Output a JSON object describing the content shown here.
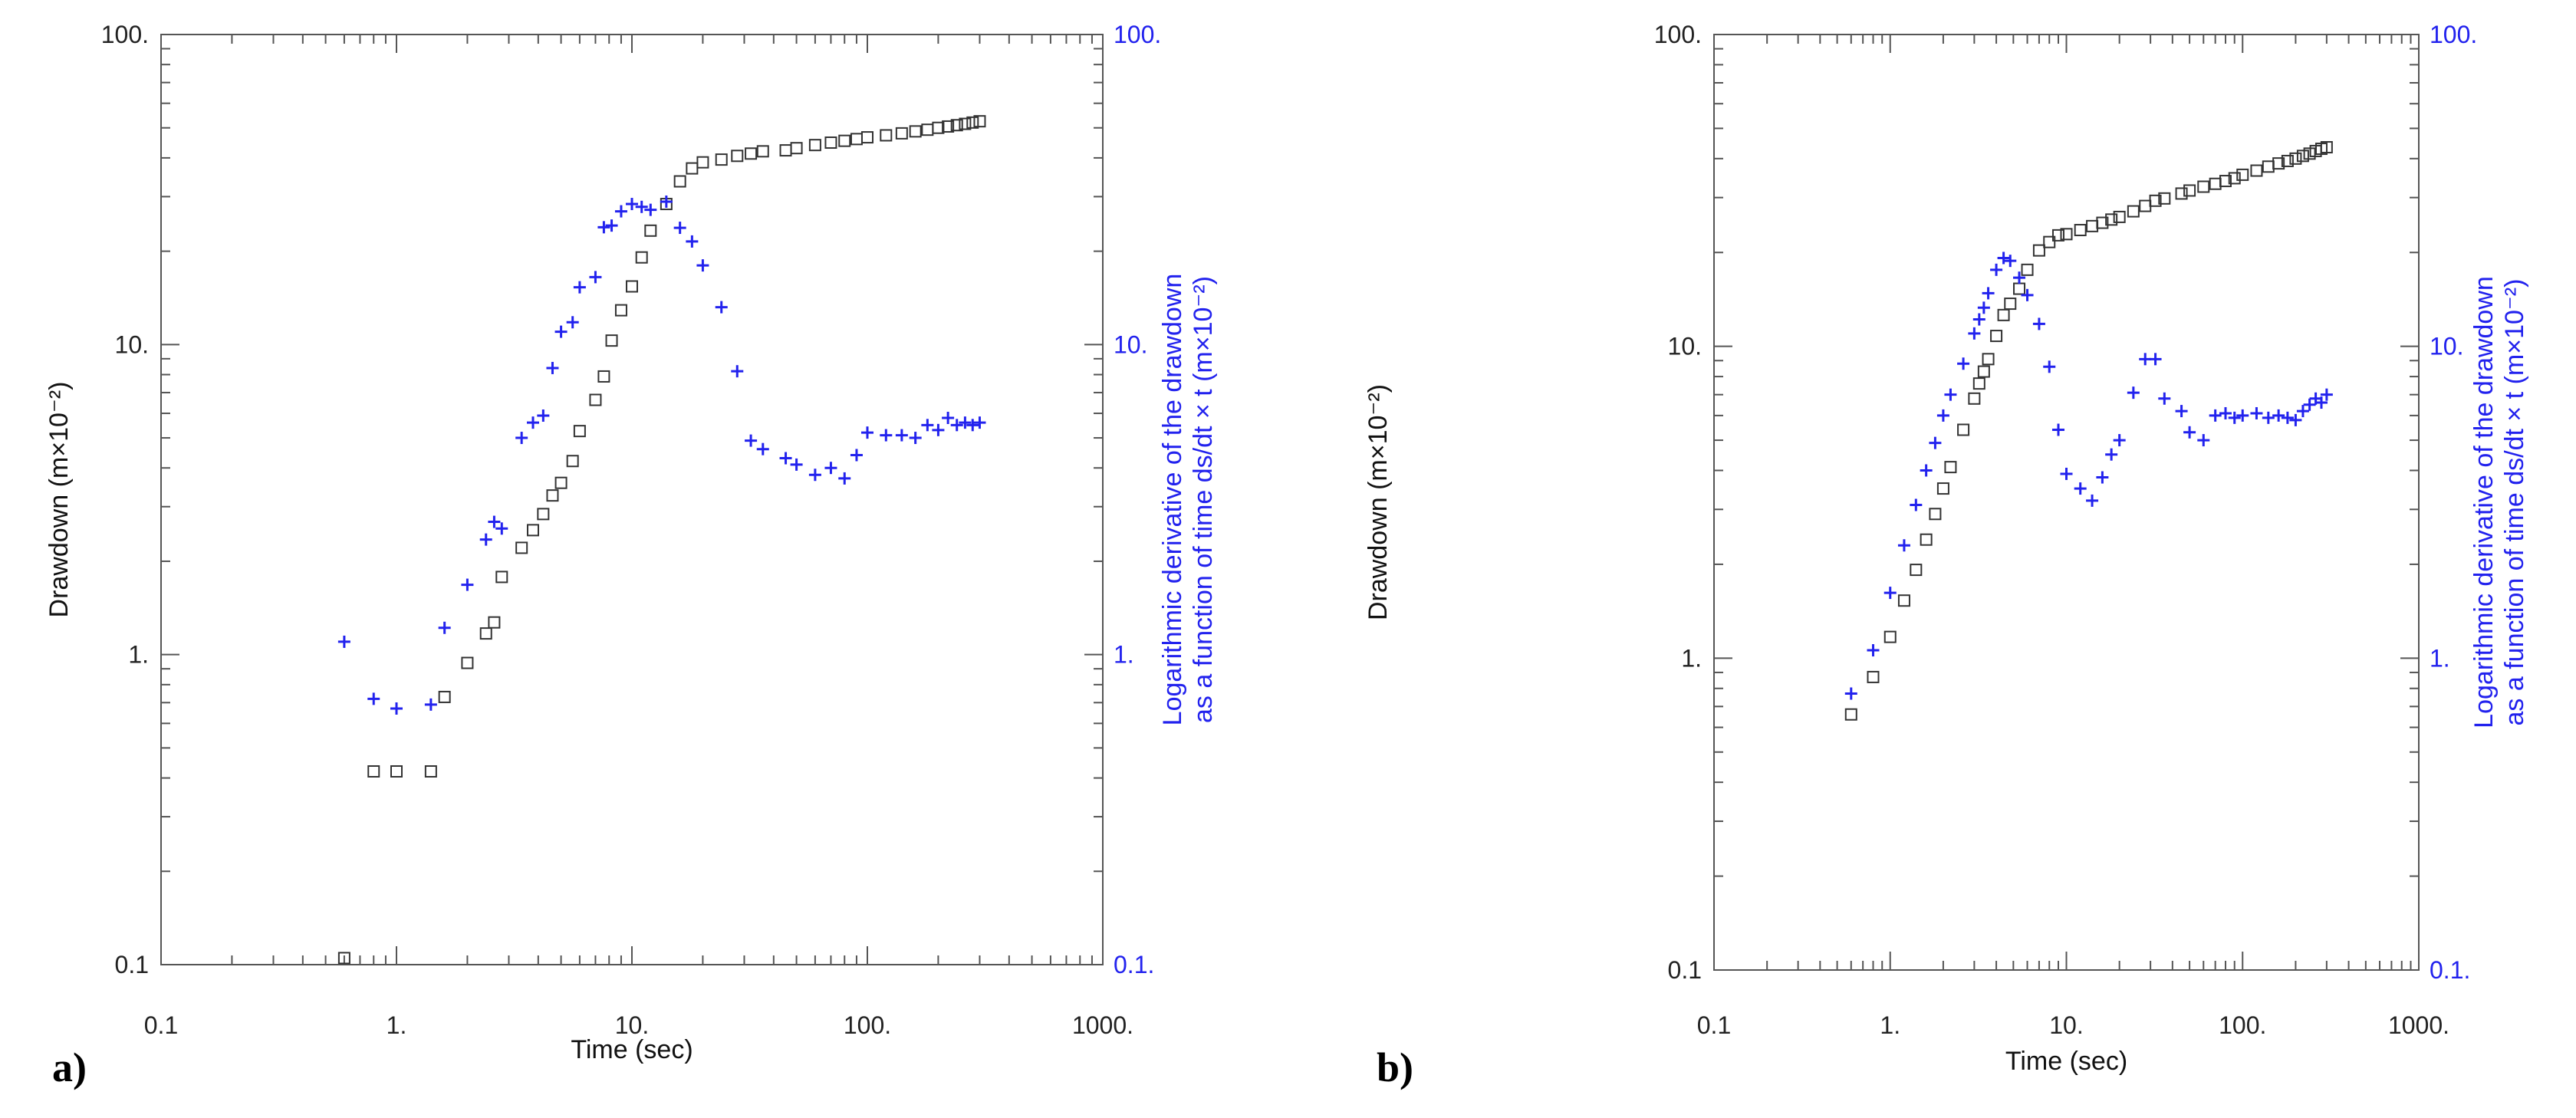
{
  "chart_data": [
    {
      "type": "scatter",
      "panel_label": "a)",
      "xlabel": "Time (sec)",
      "ylabel": "Drawdown  (m×10⁻²)",
      "ylabel_right": "Logarithmic derivative of the drawdown as a function of time ds/dt × t (m×10⁻²)",
      "ylabel_right_lines": [
        "Logarithmic derivative of the drawdown",
        "as a function of time ds/dt × t (m×10⁻²)"
      ],
      "xscale": "log",
      "yscale": "log",
      "xlim": [
        0.1,
        1000
      ],
      "ylim": [
        0.1,
        100
      ],
      "x_tick_labels": [
        "0.1",
        "1.",
        "10.",
        "100.",
        "1000."
      ],
      "y_tick_labels": [
        "0.1",
        "1.",
        "10.",
        "100."
      ],
      "y_tick_labels_right": [
        "0.1.",
        "1.",
        "10.",
        "100."
      ],
      "series": [
        {
          "name": "Drawdown",
          "marker": "square",
          "color": "#333333",
          "x": [
            0.6,
            0.8,
            1.0,
            1.4,
            1.6,
            2.0,
            2.4,
            2.6,
            2.8,
            3.4,
            3.8,
            4.2,
            4.6,
            5.0,
            5.6,
            6.0,
            7.0,
            7.6,
            8.2,
            9.0,
            10.0,
            11.0,
            12.0,
            14.0,
            16.0,
            18.0,
            20.0,
            24.0,
            28.0,
            32.0,
            36.0,
            45.0,
            50.0,
            60.0,
            70.0,
            80.0,
            90.0,
            100.0,
            120.0,
            140.0,
            160.0,
            180.0,
            200.0,
            220.0,
            240.0,
            260.0,
            280.0,
            300.0
          ],
          "values": [
            0.105,
            0.42,
            0.42,
            0.42,
            0.73,
            0.94,
            1.17,
            1.27,
            1.78,
            2.21,
            2.52,
            2.84,
            3.26,
            3.58,
            4.21,
            5.26,
            6.63,
            7.89,
            10.3,
            12.9,
            15.4,
            19.1,
            23.3,
            28.4,
            33.6,
            37.0,
            38.7,
            39.5,
            40.6,
            41.3,
            42.0,
            42.3,
            43.0,
            44.0,
            44.8,
            45.4,
            46.0,
            46.6,
            47.3,
            48.0,
            48.7,
            49.3,
            50.0,
            50.5,
            51.0,
            51.5,
            52.0,
            52.5
          ]
        },
        {
          "name": "Logarithmic derivative",
          "marker": "plus",
          "color": "#2222ee",
          "x": [
            0.6,
            0.8,
            1.0,
            1.4,
            1.6,
            2.0,
            2.4,
            2.6,
            2.8,
            3.4,
            3.8,
            4.2,
            4.6,
            5.0,
            5.6,
            6.0,
            7.0,
            7.6,
            8.2,
            9.0,
            10.0,
            11.0,
            12.0,
            14.0,
            16.0,
            18.0,
            20.0,
            24.0,
            28.0,
            32.0,
            36.0,
            45.0,
            50.0,
            60.0,
            70.0,
            80.0,
            90.0,
            100.0,
            120.0,
            140.0,
            160.0,
            180.0,
            200.0,
            220.0,
            240.0,
            260.0,
            280.0,
            300.0
          ],
          "values": [
            1.1,
            0.72,
            0.67,
            0.69,
            1.22,
            1.68,
            2.35,
            2.68,
            2.55,
            5.0,
            5.6,
            5.9,
            8.4,
            11.0,
            11.8,
            15.3,
            16.5,
            23.9,
            24.2,
            26.9,
            28.4,
            27.8,
            27.2,
            28.9,
            23.8,
            21.5,
            18.0,
            13.2,
            8.2,
            4.9,
            4.6,
            4.3,
            4.1,
            3.8,
            4.0,
            3.7,
            4.4,
            5.2,
            5.1,
            5.1,
            5.0,
            5.5,
            5.3,
            5.8,
            5.5,
            5.6,
            5.5,
            5.6
          ]
        }
      ]
    },
    {
      "type": "scatter",
      "panel_label": "b)",
      "xlabel": "Time (sec)",
      "ylabel": "Drawdown  (m×10⁻²)",
      "ylabel_right": "Logarithmic derivative of the drawdown as a function of time ds/dt × t (m×10⁻²)",
      "ylabel_right_lines": [
        "Logarithmic derivative of the drawdown",
        "as a function of time ds/dt × t (m×10⁻²)"
      ],
      "xscale": "log",
      "yscale": "log",
      "xlim": [
        0.1,
        1000
      ],
      "ylim": [
        0.1,
        100
      ],
      "x_tick_labels": [
        "0.1",
        "1.",
        "10.",
        "100.",
        "1000."
      ],
      "y_tick_labels": [
        "0.1",
        "1.",
        "10.",
        "100."
      ],
      "y_tick_labels_right": [
        "0.1.",
        "1.",
        "10.",
        "100."
      ],
      "series": [
        {
          "name": "Drawdown",
          "marker": "square",
          "color": "#333333",
          "x": [
            0.6,
            0.8,
            1.0,
            1.2,
            1.4,
            1.6,
            1.8,
            2.0,
            2.2,
            2.6,
            3.0,
            3.2,
            3.4,
            3.6,
            4.0,
            4.4,
            4.8,
            5.4,
            6.0,
            7.0,
            8.0,
            9.0,
            10.0,
            12.0,
            14.0,
            16.0,
            18.0,
            20.0,
            24.0,
            28.0,
            32.0,
            36.0,
            45.0,
            50.0,
            60.0,
            70.0,
            80.0,
            90.0,
            100.0,
            120.0,
            140.0,
            160.0,
            180.0,
            200.0,
            220.0,
            240.0,
            260.0,
            280.0,
            300.0
          ],
          "values": [
            0.66,
            0.87,
            1.17,
            1.53,
            1.92,
            2.4,
            2.9,
            3.5,
            4.1,
            5.4,
            6.8,
            7.6,
            8.3,
            9.1,
            10.8,
            12.6,
            13.7,
            15.3,
            17.6,
            20.3,
            21.6,
            22.7,
            22.9,
            23.6,
            24.3,
            24.9,
            25.5,
            26.0,
            27.1,
            28.2,
            29.3,
            29.8,
            30.9,
            31.6,
            32.5,
            33.2,
            33.9,
            34.6,
            35.5,
            36.6,
            37.7,
            38.6,
            39.3,
            40.0,
            40.8,
            41.5,
            42.3,
            43.0,
            43.5
          ]
        },
        {
          "name": "Logarithmic derivative",
          "marker": "plus",
          "color": "#2222ee",
          "x": [
            0.6,
            0.8,
            1.0,
            1.2,
            1.4,
            1.6,
            1.8,
            2.0,
            2.2,
            2.6,
            3.0,
            3.2,
            3.4,
            3.6,
            4.0,
            4.4,
            4.8,
            5.4,
            6.0,
            7.0,
            8.0,
            9.0,
            10.0,
            12.0,
            14.0,
            16.0,
            18.0,
            20.0,
            24.0,
            28.0,
            32.0,
            36.0,
            45.0,
            50.0,
            60.0,
            70.0,
            80.0,
            90.0,
            100.0,
            120.0,
            140.0,
            160.0,
            180.0,
            200.0,
            220.0,
            240.0,
            260.0,
            280.0,
            300.0
          ],
          "values": [
            0.77,
            1.06,
            1.62,
            2.3,
            3.1,
            4.0,
            4.9,
            6.0,
            7.0,
            8.8,
            11.0,
            12.2,
            13.3,
            14.8,
            17.6,
            19.2,
            18.8,
            16.6,
            14.6,
            11.8,
            8.6,
            5.4,
            3.9,
            3.5,
            3.2,
            3.8,
            4.5,
            5.0,
            7.1,
            9.1,
            9.1,
            6.8,
            6.2,
            5.3,
            5.0,
            6.0,
            6.1,
            5.9,
            6.0,
            6.1,
            5.9,
            6.0,
            5.9,
            5.8,
            6.2,
            6.5,
            6.8,
            6.6,
            7.0
          ]
        }
      ]
    }
  ]
}
